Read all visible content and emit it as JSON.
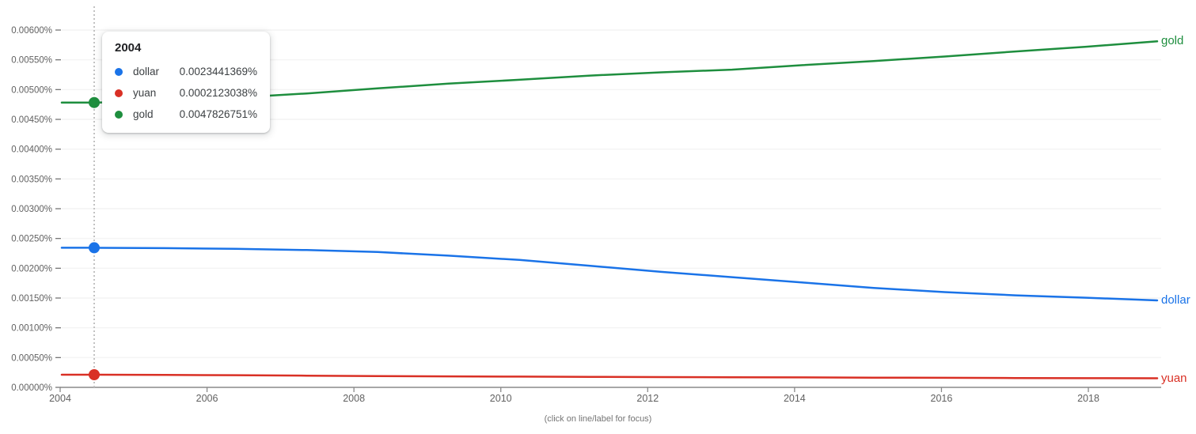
{
  "chart": {
    "caption": "(click on line/label for focus)",
    "tooltip": {
      "year": "2004",
      "rows": [
        {
          "series": "dollar",
          "value": "0.0023441369%",
          "color": "#1a73e8"
        },
        {
          "series": "yuan",
          "value": "0.0002123038%",
          "color": "#d93025"
        },
        {
          "series": "gold",
          "value": "0.0047826751%",
          "color": "#1e8e3e"
        }
      ]
    },
    "colors": {
      "axis": "#8a8a8a",
      "grid": "#f4f4f4",
      "tick_label": "#616161",
      "hover_line": "#c2c2c2"
    }
  },
  "chart_data": {
    "type": "line",
    "title": "",
    "xlabel": "",
    "ylabel": "",
    "x": [
      2004,
      2005,
      2006,
      2007,
      2008,
      2009,
      2010,
      2011,
      2012,
      2013,
      2014,
      2015,
      2016,
      2017,
      2018,
      2019
    ],
    "series": [
      {
        "name": "dollar",
        "color": "#1a73e8",
        "values": [
          0.0023441369,
          0.002338,
          0.002326,
          0.002306,
          0.002272,
          0.002212,
          0.00214,
          0.00204,
          0.00194,
          0.00185,
          0.00176,
          0.00167,
          0.0016,
          0.001545,
          0.001505,
          0.00146
        ]
      },
      {
        "name": "yuan",
        "color": "#d93025",
        "values": [
          0.0002123038,
          0.000209,
          0.000204,
          0.000197,
          0.00019,
          0.000185,
          0.000181,
          0.000177,
          0.000173,
          0.00017,
          0.000167,
          0.000163,
          0.00016,
          0.000157,
          0.000154,
          0.000152
        ]
      },
      {
        "name": "gold",
        "color": "#1e8e3e",
        "values": [
          0.0047826751,
          0.0048,
          0.004865,
          0.004935,
          0.00502,
          0.0051,
          0.005165,
          0.005235,
          0.00529,
          0.005335,
          0.00541,
          0.00548,
          0.005555,
          0.00564,
          0.00572,
          0.00581
        ]
      }
    ],
    "x_ticks": [
      2004,
      2006,
      2008,
      2010,
      2012,
      2014,
      2016,
      2018
    ],
    "y_ticks": [
      "0.00000%",
      "0.00050%",
      "0.00100%",
      "0.00150%",
      "0.00200%",
      "0.00250%",
      "0.00300%",
      "0.00350%",
      "0.00400%",
      "0.00450%",
      "0.00500%",
      "0.00550%",
      "0.00600%"
    ],
    "ylim": [
      0,
      0.006
    ],
    "grid": true,
    "legend_position": "right-edge-labels",
    "hover": {
      "year": 2004,
      "dotted_line": true
    }
  }
}
